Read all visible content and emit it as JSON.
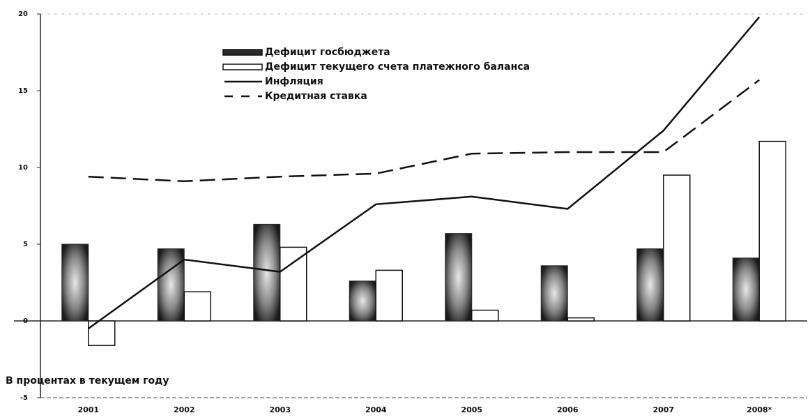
{
  "chart_data": {
    "type": "bar",
    "annotation": "В процентах в текущем году",
    "categories": [
      "2001",
      "2002",
      "2003",
      "2004",
      "2005",
      "2006",
      "2007",
      "2008*"
    ],
    "series": [
      {
        "name": "Дефицит госбюджета",
        "kind": "bar",
        "color": "#2a2a2a",
        "values": [
          5.0,
          4.7,
          6.3,
          2.6,
          5.7,
          3.6,
          4.7,
          4.1
        ]
      },
      {
        "name": "Дефицит текущего счета платежного баланса",
        "kind": "bar",
        "color": "#ffffff",
        "values": [
          -1.6,
          1.9,
          4.8,
          3.3,
          0.7,
          0.2,
          9.5,
          11.7
        ]
      },
      {
        "name": "Инфляция",
        "kind": "line",
        "color": "#111111",
        "values": [
          -0.5,
          4.0,
          3.2,
          7.6,
          8.1,
          7.3,
          12.4,
          19.8
        ]
      },
      {
        "name": "Кредитная ставка",
        "kind": "line",
        "dash": true,
        "color": "#111111",
        "values": [
          9.4,
          9.1,
          9.4,
          9.6,
          10.9,
          11.0,
          11.0,
          15.7
        ]
      }
    ],
    "ylim": [
      -5,
      20
    ],
    "yticks": [
      -5,
      0,
      5,
      10,
      15,
      20
    ],
    "grid": false
  }
}
